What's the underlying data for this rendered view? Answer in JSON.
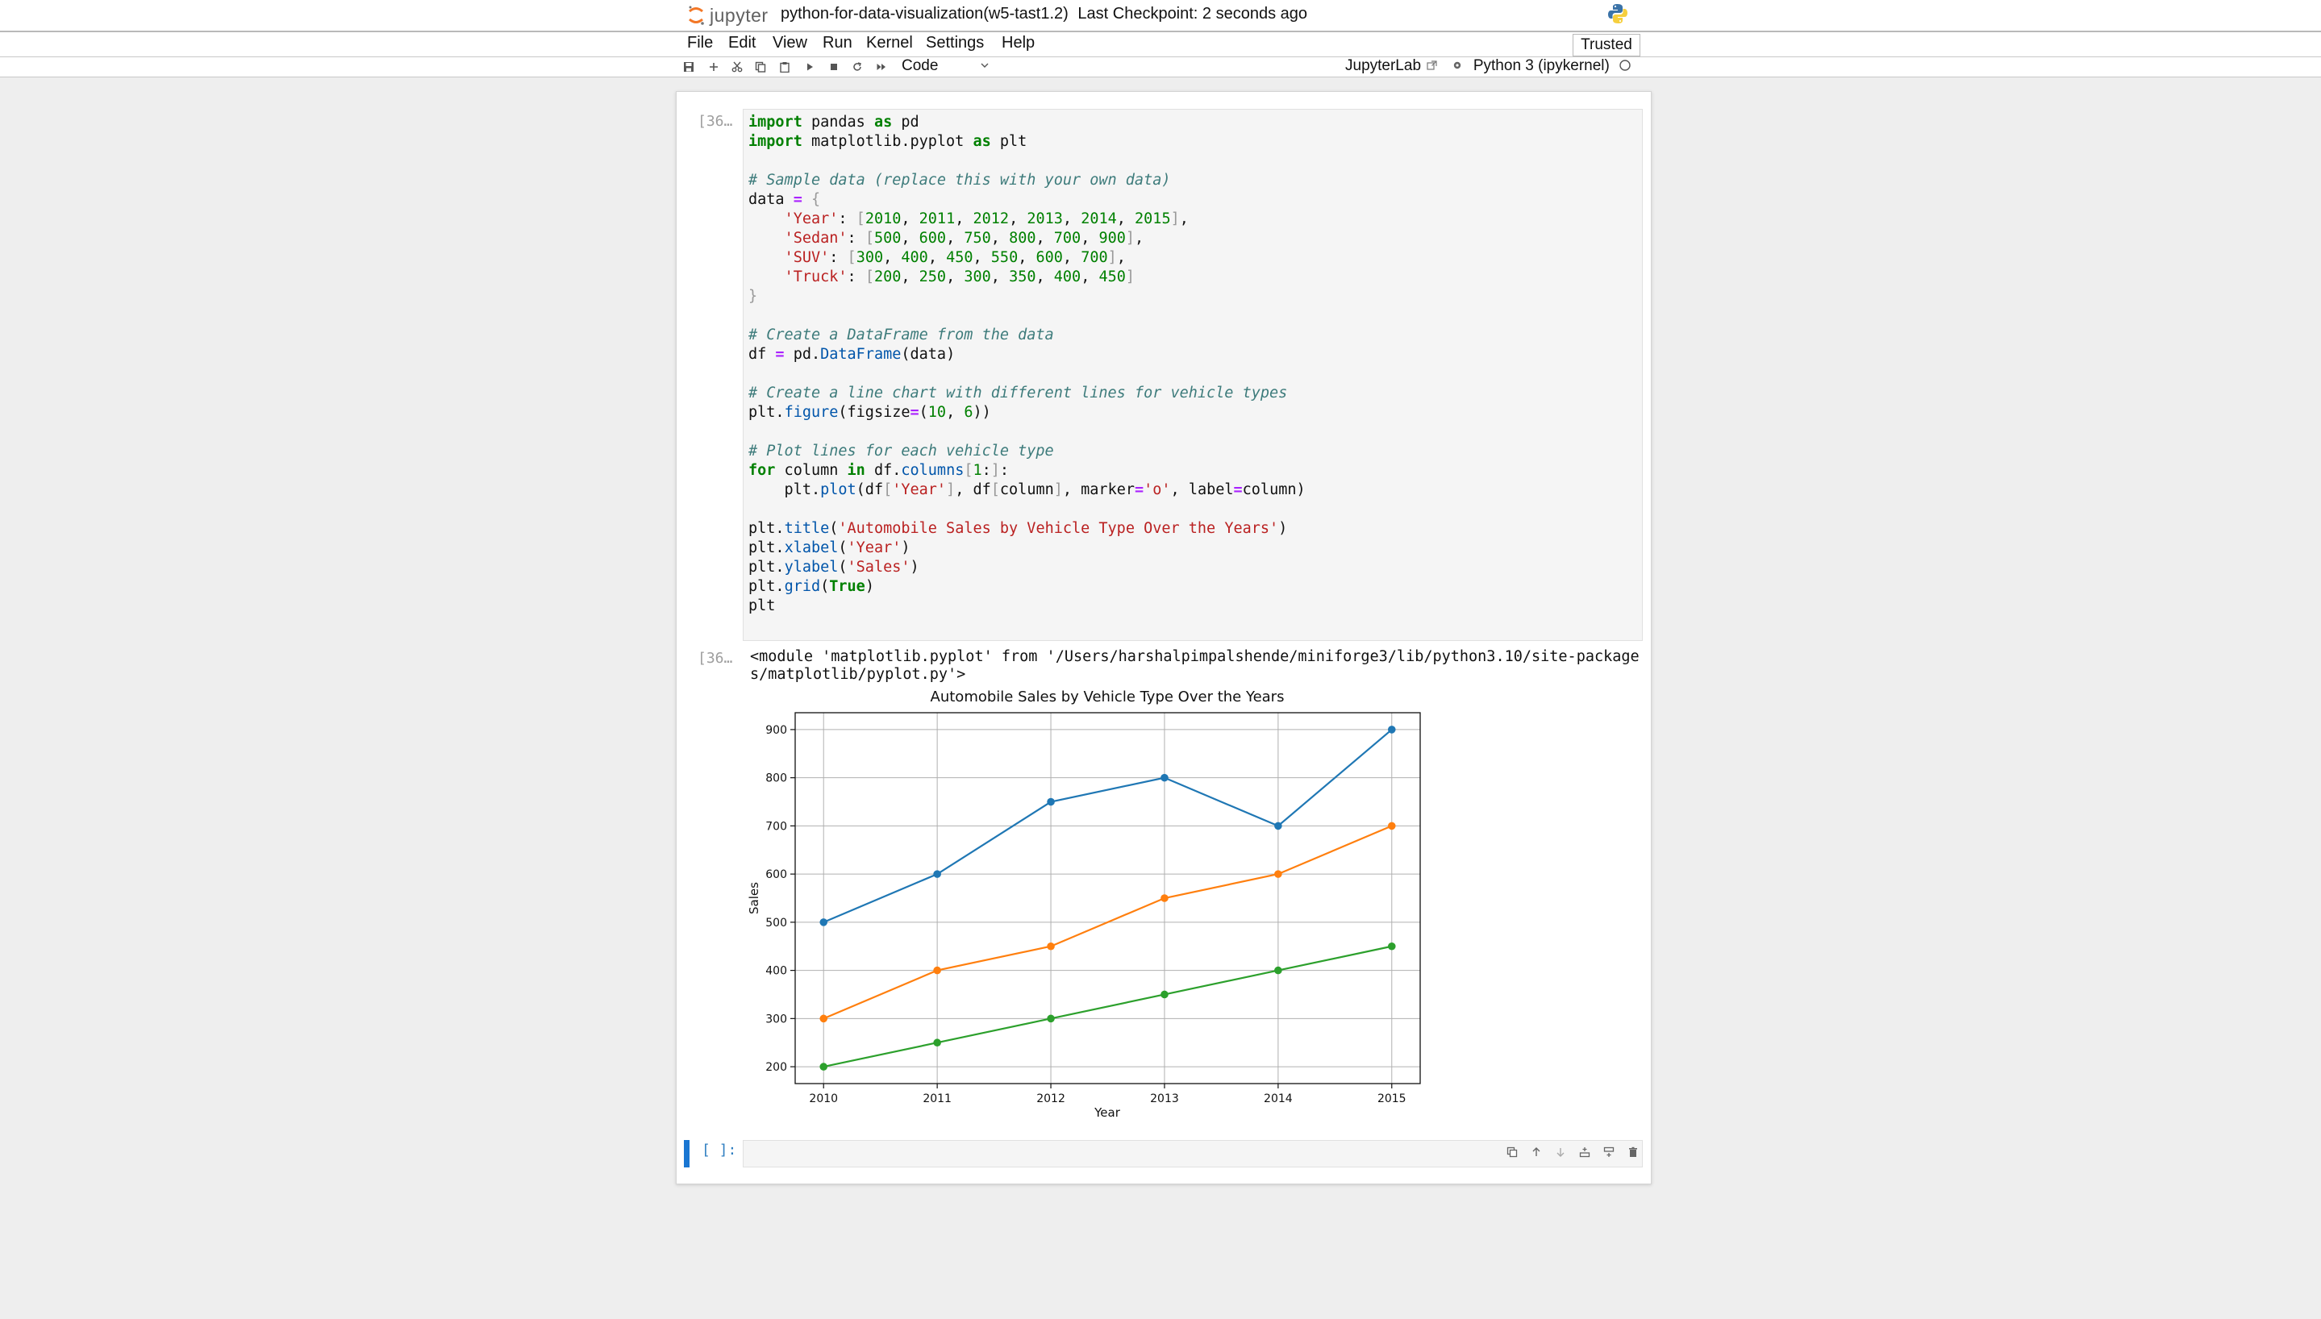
{
  "header": {
    "brand": "jupyter",
    "notebook_name": "python-for-data-visualization(w5-tast1.2)",
    "checkpoint": "Last Checkpoint: 2 seconds ago"
  },
  "menu": [
    "File",
    "Edit",
    "View",
    "Run",
    "Kernel",
    "Settings",
    "Help"
  ],
  "trusted_label": "Trusted",
  "toolbar": {
    "icons": [
      "save-icon",
      "add-cell-icon",
      "cut-icon",
      "copy-icon",
      "paste-icon",
      "run-icon",
      "stop-icon",
      "restart-icon",
      "fast-forward-icon"
    ],
    "cell_type": "Code",
    "jupyterlab_label": "JupyterLab",
    "kernel_name": "Python 3 (ipykernel)"
  },
  "cells": {
    "code_prompt": "[36…",
    "output_prompt": "[36…",
    "module_output": "<module 'matplotlib.pyplot' from '/Users/harshalpimpalshende/miniforge3/lib/python3.10/site-packages/matplotlib/pyplot.py'>",
    "empty_prompt": "[ ]:"
  },
  "cell_toolbar_icons": [
    "duplicate-icon",
    "move-up-icon",
    "move-down-icon",
    "insert-below-icon",
    "insert-above-icon",
    "delete-icon"
  ],
  "chart_data": {
    "type": "line",
    "title": "Automobile Sales by Vehicle Type Over the Years",
    "xlabel": "Year",
    "ylabel": "Sales",
    "x": [
      2010,
      2011,
      2012,
      2013,
      2014,
      2015
    ],
    "series": [
      {
        "values": [
          500,
          600,
          750,
          800,
          700,
          900
        ],
        "color": "#1f77b4"
      },
      {
        "values": [
          300,
          400,
          450,
          550,
          600,
          700
        ],
        "color": "#ff7f0e"
      },
      {
        "values": [
          200,
          250,
          300,
          350,
          400,
          450
        ],
        "color": "#2ca02c"
      }
    ],
    "xlim": [
      2009.75,
      2015.25
    ],
    "ylim": [
      165,
      935
    ],
    "yticks": [
      200,
      300,
      400,
      500,
      600,
      700,
      800,
      900
    ],
    "grid": true,
    "marker": "o"
  }
}
